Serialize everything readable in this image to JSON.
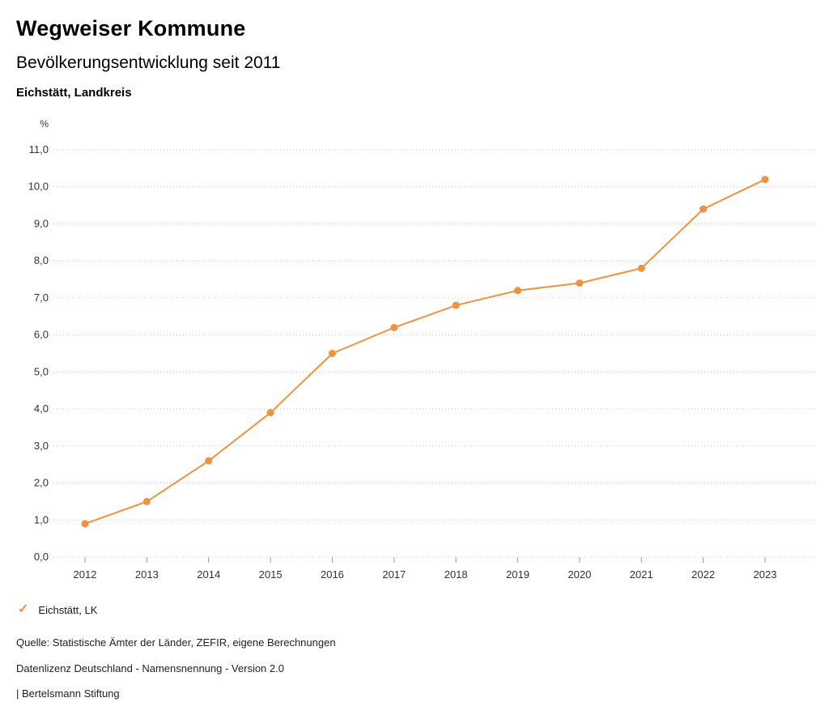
{
  "header": {
    "title": "Wegweiser Kommune",
    "subtitle": "Bevölkerungsentwicklung seit 2011",
    "region": "Eichstätt, Landkreis"
  },
  "chart_data": {
    "type": "line",
    "title": "Bevölkerungsentwicklung seit 2011",
    "xlabel": "",
    "ylabel": "%",
    "x": [
      "2012",
      "2013",
      "2014",
      "2015",
      "2016",
      "2017",
      "2018",
      "2019",
      "2020",
      "2021",
      "2022",
      "2023"
    ],
    "series": [
      {
        "name": "Eichstätt, LK",
        "values": [
          0.9,
          1.5,
          2.6,
          3.9,
          5.5,
          6.2,
          6.8,
          7.2,
          7.4,
          7.8,
          9.4,
          10.2
        ],
        "color": "#f0923f"
      }
    ],
    "ylim": [
      0,
      11
    ],
    "ytick_values": [
      0,
      1,
      2,
      3,
      4,
      5,
      6,
      7,
      8,
      9,
      10,
      11
    ],
    "ytick_labels": [
      "0,0",
      "1,0",
      "2,0",
      "3,0",
      "4,0",
      "5,0",
      "6,0",
      "7,0",
      "8,0",
      "9,0",
      "10,0",
      "11,0"
    ],
    "grid": "horizontal-dotted",
    "legend_position": "bottom-left",
    "colors": {
      "line": "#f0923f",
      "grid": "#c9c9c9",
      "tick": "#999999",
      "axis_text": "#333333"
    }
  },
  "legend": {
    "items": [
      {
        "label": "Eichstätt, LK",
        "checkmark": "✓",
        "color": "#f0923f"
      }
    ]
  },
  "footer": {
    "source": "Quelle: Statistische Ämter der Länder, ZEFIR, eigene Berechnungen",
    "license": "Datenlizenz Deutschland - Namensnennung - Version 2.0",
    "brand": "| Bertelsmann Stiftung"
  }
}
